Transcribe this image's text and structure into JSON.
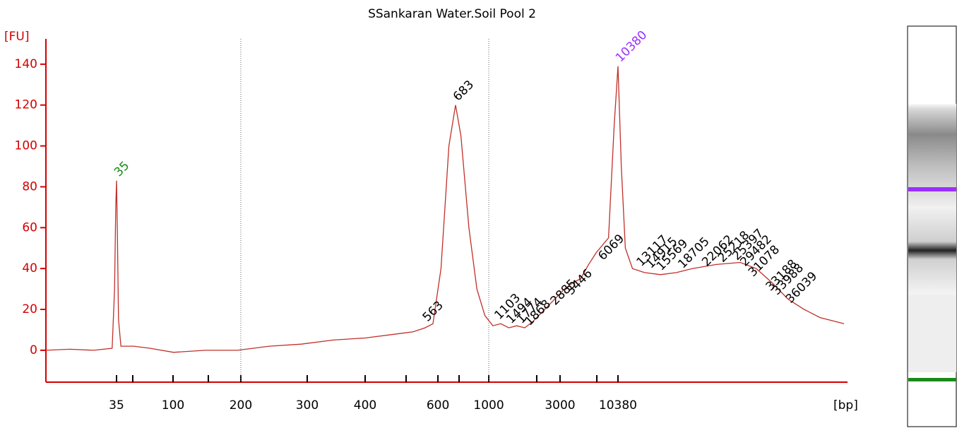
{
  "chart_data": {
    "type": "line",
    "title": "SSankaran Water.Soil Pool 2",
    "y_label": "[FU]",
    "x_label": "[bp]",
    "color": "#c0302a",
    "axis_color": "#d40000",
    "xlim": [
      0,
      100
    ],
    "ylim": [
      -15.6,
      152.4
    ],
    "yticks": [
      0,
      20,
      40,
      60,
      80,
      100,
      120,
      140
    ],
    "xticks": [
      {
        "value": 8.85,
        "label": "35"
      },
      {
        "value": 15.93,
        "label": "100"
      },
      {
        "value": 24.42,
        "label": "200"
      },
      {
        "value": 32.74,
        "label": "300"
      },
      {
        "value": 40.0,
        "label": "400"
      },
      {
        "value": 49.12,
        "label": "600"
      },
      {
        "value": 55.49,
        "label": "1000"
      },
      {
        "value": 64.42,
        "label": "3000"
      },
      {
        "value": 71.68,
        "label": "10380"
      }
    ],
    "x_minor_ticks": [
      10.88,
      20.35,
      45.13,
      51.77,
      61.5,
      69.03
    ],
    "x_dashed_lines": [
      24.42,
      55.49
    ],
    "x": [
      0,
      3,
      6,
      8.3,
      8.6,
      8.75,
      8.85,
      8.95,
      9.1,
      9.4,
      11,
      13,
      16,
      20,
      24,
      28,
      32,
      36,
      40,
      44,
      46,
      47.5,
      48.5,
      49.5,
      50.5,
      51.33,
      52,
      53,
      54,
      55,
      56,
      57,
      58,
      59,
      60,
      61,
      62,
      63,
      64,
      65,
      66,
      67,
      68,
      69,
      70.5,
      71.2,
      71.68,
      72.1,
      72.6,
      73.5,
      75,
      77,
      79,
      81,
      84,
      87,
      89,
      91,
      93,
      95,
      97,
      100
    ],
    "values": [
      0,
      0.5,
      0,
      1,
      30,
      70,
      83,
      60,
      15,
      2,
      2,
      1,
      -1,
      0,
      0,
      2,
      3,
      5,
      6,
      8,
      9,
      11,
      13,
      40,
      100,
      120,
      105,
      60,
      30,
      17,
      12,
      13,
      11,
      12,
      11,
      14,
      18,
      22,
      26,
      30,
      33,
      35,
      42,
      48,
      55,
      110,
      139,
      90,
      50,
      40,
      38,
      37,
      38,
      40,
      42,
      43,
      40,
      33,
      25,
      20,
      16,
      13
    ],
    "annotations": [
      {
        "label": "35",
        "x": 8.85,
        "y": 86,
        "color": "#1a8a1a"
      },
      {
        "label": "563",
        "x": 47.5,
        "y": 15,
        "color": "#000000"
      },
      {
        "label": "683",
        "x": 51.33,
        "y": 123,
        "color": "#000000"
      },
      {
        "label": "1103",
        "x": 56.5,
        "y": 16,
        "color": "#000000"
      },
      {
        "label": "1494",
        "x": 58,
        "y": 14,
        "color": "#000000"
      },
      {
        "label": "1774",
        "x": 59.3,
        "y": 14,
        "color": "#000000"
      },
      {
        "label": "1868",
        "x": 60.3,
        "y": 13,
        "color": "#000000"
      },
      {
        "label": "2885",
        "x": 63.5,
        "y": 23,
        "color": "#000000"
      },
      {
        "label": "3446",
        "x": 65.5,
        "y": 28,
        "color": "#000000"
      },
      {
        "label": "6069",
        "x": 69.5,
        "y": 45,
        "color": "#000000"
      },
      {
        "label": "10380",
        "x": 71.68,
        "y": 142,
        "color": "#9b30ff"
      },
      {
        "label": "13117",
        "x": 74.3,
        "y": 42,
        "color": "#000000"
      },
      {
        "label": "14915",
        "x": 75.5,
        "y": 41,
        "color": "#000000"
      },
      {
        "label": "15569",
        "x": 76.8,
        "y": 40,
        "color": "#000000"
      },
      {
        "label": "18705",
        "x": 79.5,
        "y": 41,
        "color": "#000000"
      },
      {
        "label": "22062",
        "x": 82.5,
        "y": 42,
        "color": "#000000"
      },
      {
        "label": "25218",
        "x": 84.5,
        "y": 44,
        "color": "#000000"
      },
      {
        "label": "25397",
        "x": 86.3,
        "y": 45,
        "color": "#000000"
      },
      {
        "label": "29482",
        "x": 87.3,
        "y": 42,
        "color": "#000000"
      },
      {
        "label": "31078",
        "x": 88.3,
        "y": 37,
        "color": "#000000"
      },
      {
        "label": "33188",
        "x": 90.5,
        "y": 30,
        "color": "#000000"
      },
      {
        "label": "33988",
        "x": 91.3,
        "y": 28,
        "color": "#000000"
      },
      {
        "label": "36039",
        "x": 93,
        "y": 24,
        "color": "#000000"
      }
    ]
  }
}
